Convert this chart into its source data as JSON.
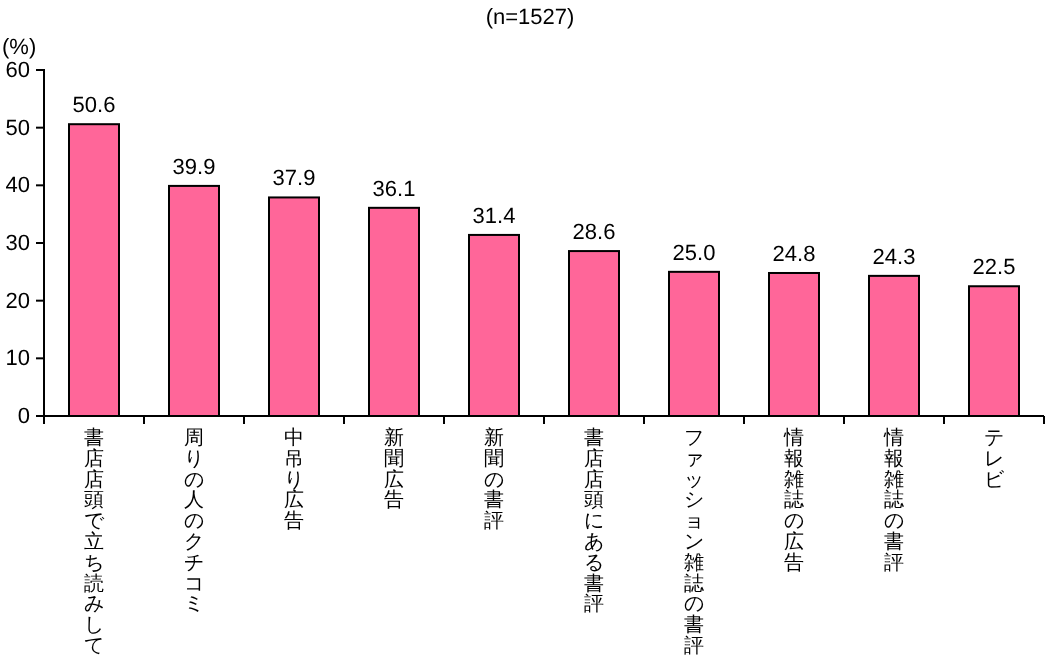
{
  "chart_data": {
    "type": "bar",
    "title": "(n=1527)",
    "ylabel": "(%)",
    "categories": [
      "書店店頭で立ち読みして",
      "周りの人のクチコミ",
      "中吊り広告",
      "新聞広告",
      "新聞の書評",
      "書店店頭にある書評",
      "ファッション雑誌の書評",
      "情報雑誌の広告",
      "情報雑誌の書評",
      "テレビ"
    ],
    "values": [
      50.6,
      39.9,
      37.9,
      36.1,
      31.4,
      28.6,
      25.0,
      24.8,
      24.3,
      22.5
    ],
    "value_labels": [
      "50.6",
      "39.9",
      "37.9",
      "36.1",
      "31.4",
      "28.6",
      "25.0",
      "24.8",
      "24.3",
      "22.5"
    ],
    "color": "#ff6699",
    "ylim": [
      0,
      60
    ],
    "yticks": [
      0,
      10,
      20,
      30,
      40,
      50,
      60
    ],
    "grid": false
  }
}
